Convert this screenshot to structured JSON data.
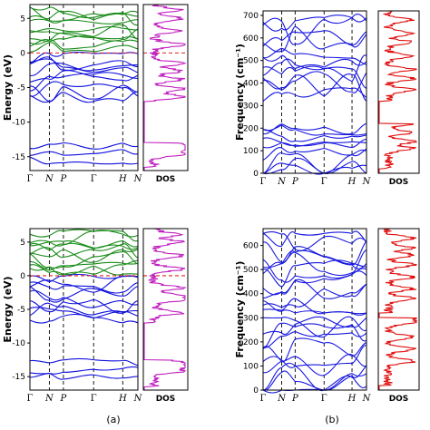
{
  "captions": [
    "(a)",
    "(b)"
  ],
  "colors": {
    "valence": "#1010dd",
    "conduction": "#1a8c1a",
    "electron_dos": "#c020c0",
    "fermi": "#dd2222",
    "phonon": "#1818e0",
    "phonon_dos": "#e01010"
  },
  "chart_data": [
    {
      "type": "line",
      "subtype": "electronic-band-structure",
      "ylabel": "Energy (eV)",
      "ylim": [
        -17,
        7
      ],
      "yticks": [
        5,
        0,
        -5,
        -10,
        -15
      ],
      "kpoints": [
        "Γ",
        "N",
        "P",
        "Γ",
        "H",
        "N"
      ],
      "kpoint_positions": [
        0,
        0.18,
        0.31,
        0.59,
        0.86,
        1.0
      ],
      "fermi_level": 0,
      "band_groups": [
        {
          "name": "conduction",
          "energy_range": [
            0.2,
            6.6
          ],
          "count": 10
        },
        {
          "name": "valence",
          "energy_range": [
            -7.0,
            -0.1
          ],
          "count": 9
        },
        {
          "name": "semicore",
          "energy_range": [
            -16.0,
            -13.0
          ],
          "count": 3
        }
      ],
      "dos_label": "DOS",
      "dos_peaks_energy": [
        6.2,
        5.0,
        3.2,
        1.2,
        -1.5,
        -2.6,
        -3.8,
        -5.2,
        -6.3,
        -13.3,
        -13.9,
        -14.6
      ]
    },
    {
      "type": "line",
      "subtype": "phonon-dispersion",
      "ylabel": "Frequency (cm⁻¹)",
      "ylim": [
        0,
        720
      ],
      "yticks": [
        0,
        100,
        200,
        300,
        400,
        500,
        600,
        700
      ],
      "kpoints": [
        "Γ",
        "N",
        "P",
        "Γ",
        "H",
        "N"
      ],
      "kpoint_positions": [
        0,
        0.18,
        0.31,
        0.59,
        0.86,
        1.0
      ],
      "band_groups": [
        {
          "name": "acoustic",
          "frequency_range": [
            0,
            220
          ],
          "count": 9
        },
        {
          "name": "optical",
          "frequency_range": [
            320,
            690
          ],
          "count": 11
        }
      ],
      "dos_label": "DOS",
      "dos_peaks_frequency": [
        680,
        620,
        580,
        520,
        460,
        420,
        370,
        220,
        180,
        140,
        110
      ]
    },
    {
      "type": "line",
      "subtype": "electronic-band-structure",
      "ylabel": "Energy (eV)",
      "ylim": [
        -17,
        7
      ],
      "yticks": [
        5,
        0,
        -5,
        -10,
        -15
      ],
      "kpoints": [
        "Γ",
        "N",
        "P",
        "Γ",
        "H",
        "N"
      ],
      "kpoint_positions": [
        0,
        0.18,
        0.31,
        0.59,
        0.86,
        1.0
      ],
      "fermi_level": 0,
      "band_groups": [
        {
          "name": "conduction",
          "energy_range": [
            0.2,
            6.6
          ],
          "count": 10
        },
        {
          "name": "valence",
          "energy_range": [
            -7.0,
            -0.1
          ],
          "count": 9
        },
        {
          "name": "semicore",
          "energy_range": [
            -15.5,
            -12.5
          ],
          "count": 3
        }
      ],
      "dos_label": "DOS",
      "dos_peaks_energy": [
        6.1,
        5.0,
        3.0,
        1.0,
        -1.8,
        -3.0,
        -3.6,
        -5.5,
        -12.9,
        -13.5,
        -14.2
      ]
    },
    {
      "type": "line",
      "subtype": "phonon-dispersion",
      "ylabel": "Frequency (cm⁻¹)",
      "ylim": [
        0,
        670
      ],
      "yticks": [
        0,
        100,
        200,
        300,
        400,
        500,
        600
      ],
      "kpoints": [
        "Γ",
        "N",
        "P",
        "Γ",
        "H",
        "N"
      ],
      "kpoint_positions": [
        0,
        0.18,
        0.31,
        0.59,
        0.86,
        1.0
      ],
      "band_groups": [
        {
          "name": "acoustic",
          "frequency_range": [
            0,
            300
          ],
          "count": 10
        },
        {
          "name": "optical",
          "frequency_range": [
            320,
            650
          ],
          "count": 12
        }
      ],
      "dos_label": "DOS",
      "dos_peaks_frequency": [
        630,
        590,
        560,
        520,
        470,
        420,
        380,
        300,
        280,
        220,
        170,
        120
      ]
    }
  ]
}
